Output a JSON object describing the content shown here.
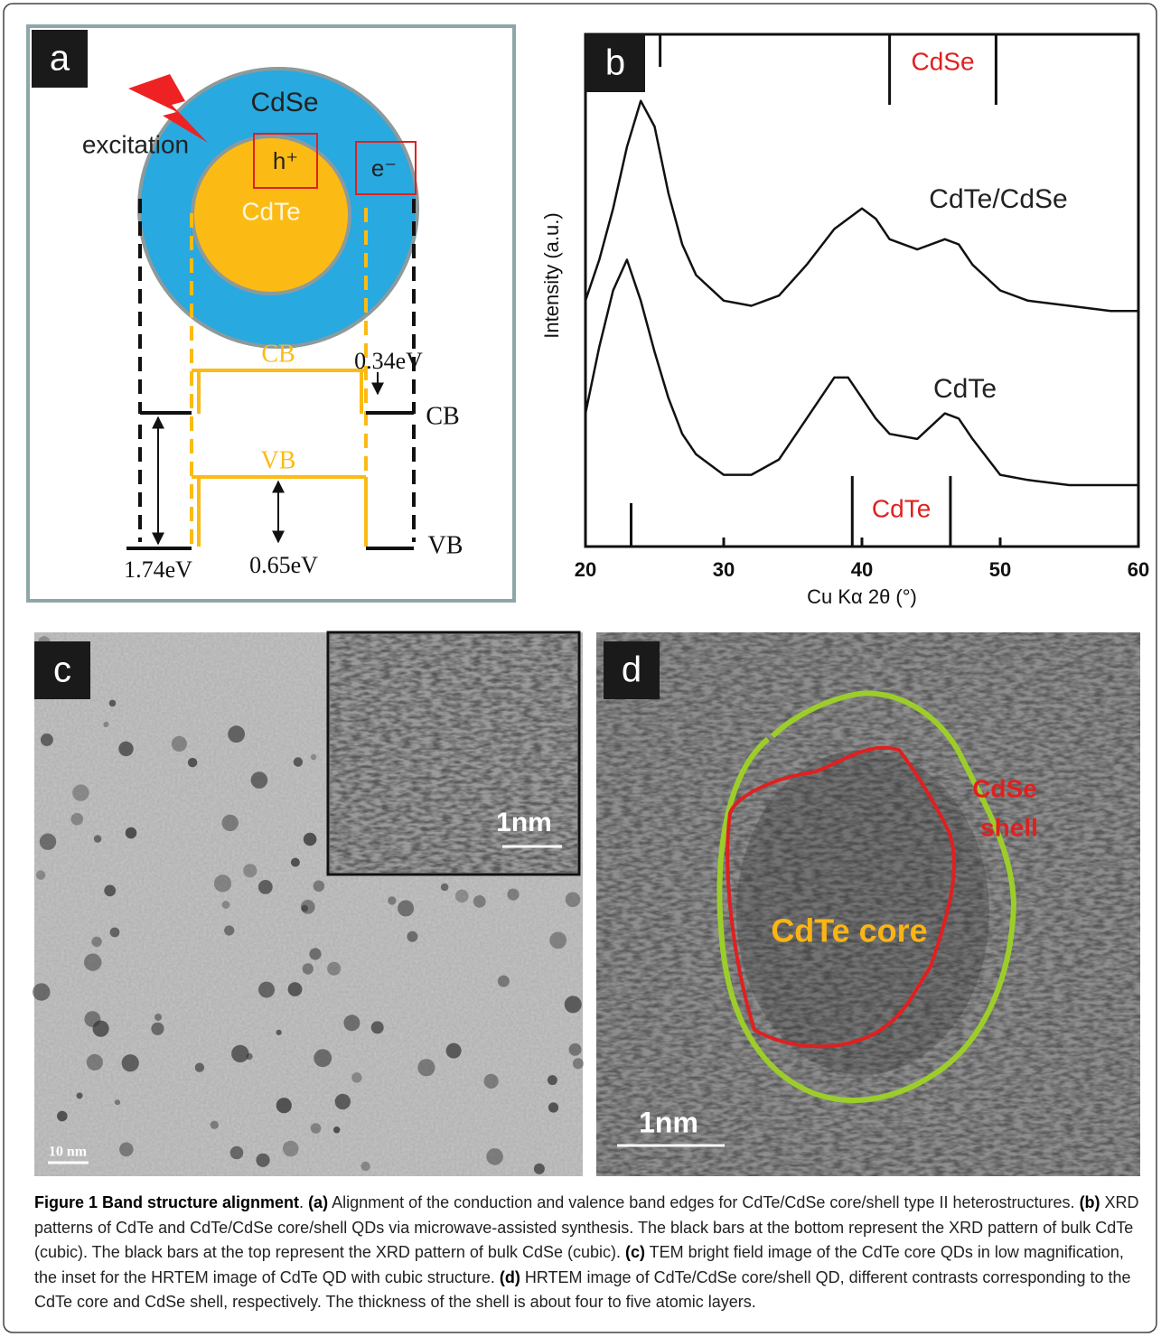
{
  "figure": {
    "panel_a": {
      "label": "a",
      "shell": "CdSe",
      "core": "CdTe",
      "excitation": "excitation",
      "hole": "h⁺",
      "electron": "e⁻",
      "core_cb": "CB",
      "core_vb": "VB",
      "shell_cb": "CB",
      "shell_vb": "VB",
      "cb_offset": "0.34eV",
      "vb_offset": "0.65eV",
      "shell_gap": "1.74eV"
    },
    "panel_c": {
      "label": "c",
      "inset_scale": "1nm",
      "scale": "10 nm"
    },
    "panel_d": {
      "label": "d",
      "shell_line1": "CdSe",
      "shell_line2": "shell",
      "core": "CdTe core",
      "scale": "1nm"
    },
    "caption": [
      {
        "text": "Figure 1 Band structure alignment",
        "bold": true
      },
      {
        "text": ". ",
        "bold": false
      },
      {
        "text": "(a)",
        "bold": true
      },
      {
        "text": " Alignment of the conduction and valence band edges for CdTe/CdSe core/shell type II heterostructures. ",
        "bold": false
      },
      {
        "text": "(b)",
        "bold": true
      },
      {
        "text": " XRD patterns of CdTe and CdTe/CdSe core/shell QDs via microwave-assisted synthesis. The black bars at the bottom represent the XRD pattern of bulk CdTe (cubic). The black bars at the top represent the XRD pattern of bulk CdSe (cubic). ",
        "bold": false
      },
      {
        "text": "(c)",
        "bold": true
      },
      {
        "text": " TEM bright field image of the CdTe core QDs in low magnification, the inset for the HRTEM image of CdTe QD with cubic structure. ",
        "bold": false
      },
      {
        "text": "(d)",
        "bold": true
      },
      {
        "text": " HRTEM image of CdTe/CdSe core/shell QD, different contrasts corresponding to the CdTe core and CdSe shell, respectively. The thickness of the shell is about four to five atomic layers.",
        "bold": false
      }
    ]
  },
  "chart_data": {
    "type": "line",
    "panel_label": "b",
    "x_label": "Cu Kα 2θ (°)",
    "y_label": "Intensity (a.u.)",
    "xlim": [
      20,
      60
    ],
    "xticks": [
      20,
      30,
      40,
      50,
      60
    ],
    "ylim": [
      0,
      10
    ],
    "x": [
      20,
      21,
      22,
      23,
      24,
      25,
      26,
      27,
      28,
      30,
      32,
      34,
      36,
      38,
      39,
      40,
      41,
      42,
      44,
      46,
      47,
      48,
      50,
      52,
      55,
      58,
      60
    ],
    "series": [
      {
        "name": "CdTe/CdSe",
        "color": "#111111",
        "values": [
          4.8,
          5.6,
          6.6,
          7.8,
          8.7,
          8.2,
          6.9,
          5.9,
          5.3,
          4.8,
          4.7,
          4.9,
          5.5,
          6.2,
          6.4,
          6.6,
          6.4,
          6.0,
          5.8,
          6.0,
          5.9,
          5.5,
          5.0,
          4.8,
          4.7,
          4.6,
          4.6
        ]
      },
      {
        "name": "CdTe",
        "color": "#111111",
        "values": [
          2.6,
          3.9,
          5.0,
          5.6,
          4.8,
          3.8,
          2.9,
          2.2,
          1.8,
          1.4,
          1.4,
          1.7,
          2.5,
          3.3,
          3.3,
          2.9,
          2.5,
          2.2,
          2.1,
          2.6,
          2.5,
          2.1,
          1.4,
          1.3,
          1.2,
          1.2,
          1.2
        ]
      }
    ],
    "reference_bars": [
      {
        "name": "CdSe",
        "color": "#e02020",
        "positions": [
          25.4,
          42.0,
          49.7
        ]
      },
      {
        "name": "CdTe",
        "color": "#e02020",
        "positions": [
          23.3,
          39.3,
          46.4
        ]
      }
    ]
  }
}
